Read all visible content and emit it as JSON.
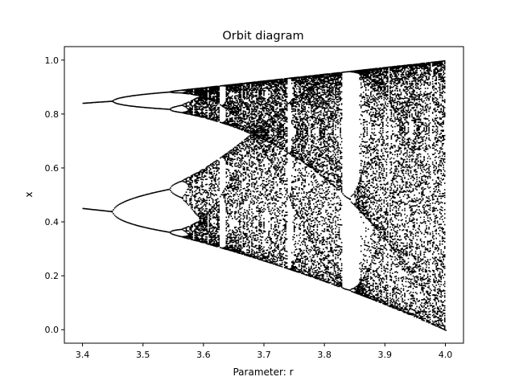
{
  "chart_data": {
    "type": "scatter",
    "title": "Orbit diagram",
    "xlabel": "Parameter: r",
    "ylabel": "x",
    "xlim": [
      3.37,
      4.03
    ],
    "ylim": [
      -0.05,
      1.05
    ],
    "xticks": [
      3.4,
      3.5,
      3.6,
      3.7,
      3.8,
      3.9,
      4.0
    ],
    "xtick_labels": [
      "3.4",
      "3.5",
      "3.6",
      "3.7",
      "3.8",
      "3.9",
      "4.0"
    ],
    "yticks": [
      0.0,
      0.2,
      0.4,
      0.6,
      0.8,
      1.0
    ],
    "ytick_labels": [
      "0.0",
      "0.2",
      "0.4",
      "0.6",
      "0.8",
      "1.0"
    ],
    "grid": false,
    "marker_color": "#000000",
    "series": [
      {
        "map": "logistic x(n+1) = r·x(n)·(1 − x(n))",
        "r_range": [
          3.4,
          4.0
        ],
        "r_count": 300,
        "iterates_plotted": 100
      }
    ]
  }
}
